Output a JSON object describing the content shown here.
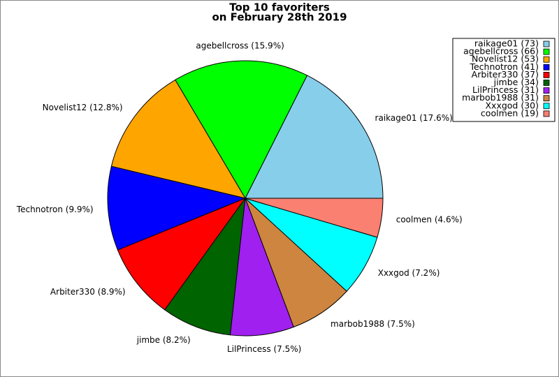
{
  "chart_data": {
    "type": "pie",
    "title": "Top 10 favoriters",
    "subtitle": "on February 28th 2019",
    "labels": [
      "raikage01 (17.6%)",
      "agebellcross (15.9%)",
      "Novelist12 (12.8%)",
      "Technotron (9.9%)",
      "Arbiter330 (8.9%)",
      "jimbe (8.2%)",
      "LilPrincess (7.5%)",
      "marbob1988 (7.5%)",
      "Xxxgod (7.2%)",
      "coolmen (4.6%)"
    ],
    "legend_labels": [
      "raikage01 (73)",
      "agebellcross (66)",
      "Novelist12 (53)",
      "Technotron (41)",
      "Arbiter330 (37)",
      "jimbe (34)",
      "LilPrincess (31)",
      "marbob1988 (31)",
      "Xxxgod (30)",
      "coolmen (19)"
    ],
    "values": [
      73,
      66,
      53,
      41,
      37,
      34,
      31,
      31,
      30,
      19
    ],
    "colors": [
      "#87ceeb",
      "#00ff00",
      "#ffa500",
      "#0000ff",
      "#ff0000",
      "#006400",
      "#a020f0",
      "#cd853f",
      "#00ffff",
      "#fa8072"
    ],
    "legend": "upper right"
  }
}
